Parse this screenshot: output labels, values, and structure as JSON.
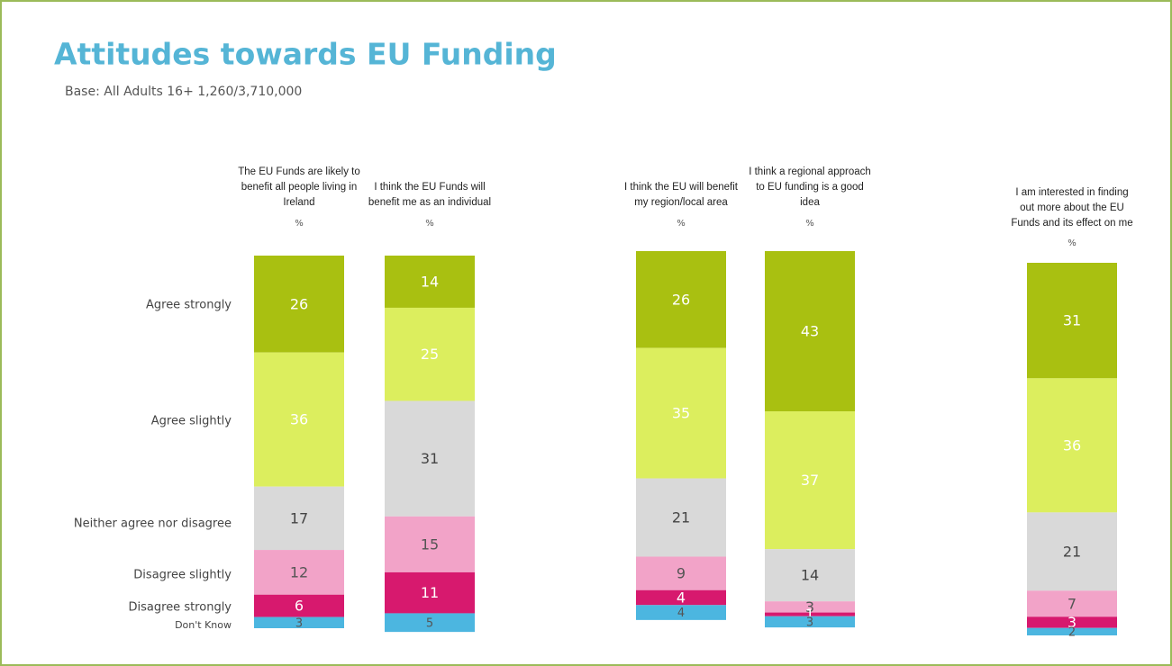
{
  "chart_data": {
    "type": "stacked_bar",
    "title": "Attitudes towards EU Funding",
    "subtitle": "Base: All Adults 16+ 1,260/3,710,000",
    "unit": "%",
    "categories": [
      "The EU Funds are likely to benefit all people living in Ireland",
      "I think the EU Funds will benefit me as an individual",
      "I think the EU will benefit my region/local area",
      "I think a regional approach to EU funding is a good idea",
      "I am interested in finding out more about the EU Funds and its effect on me"
    ],
    "series": [
      {
        "name": "Agree strongly",
        "color": "#a9c011",
        "values": [
          26,
          14,
          26,
          43,
          31
        ]
      },
      {
        "name": "Agree slightly",
        "color": "#dcee5e",
        "values": [
          36,
          25,
          35,
          37,
          36
        ]
      },
      {
        "name": "Neither agree nor disagree",
        "color": "#d9d9d9",
        "values": [
          17,
          31,
          21,
          14,
          21
        ]
      },
      {
        "name": "Disagree slightly",
        "color": "#f2a3c8",
        "values": [
          12,
          15,
          9,
          3,
          7
        ]
      },
      {
        "name": "Disagree strongly",
        "color": "#d7196e",
        "values": [
          6,
          11,
          4,
          1,
          3
        ]
      },
      {
        "name": "Don't Know",
        "color": "#4cb6e0",
        "values": [
          3,
          5,
          4,
          3,
          2
        ]
      }
    ]
  }
}
